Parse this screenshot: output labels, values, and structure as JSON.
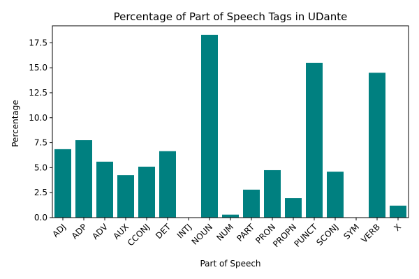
{
  "chart_data": {
    "type": "bar",
    "title": "Percentage of Part of Speech Tags in UDante",
    "xlabel": "Part of Speech",
    "ylabel": "Percentage",
    "categories": [
      "ADJ",
      "ADP",
      "ADV",
      "AUX",
      "CCONJ",
      "DET",
      "INTJ",
      "NOUN",
      "NUM",
      "PART",
      "PRON",
      "PROPN",
      "PUNCT",
      "SCONJ",
      "SYM",
      "VERB",
      "X"
    ],
    "values": [
      6.85,
      7.75,
      5.6,
      4.25,
      5.1,
      6.65,
      0.0,
      18.3,
      0.3,
      2.8,
      4.75,
      1.95,
      15.5,
      4.6,
      0.0,
      14.5,
      1.2
    ],
    "ylim": [
      0,
      19.2
    ],
    "yticks": [
      0.0,
      2.5,
      5.0,
      7.5,
      10.0,
      12.5,
      15.0,
      17.5
    ],
    "ytick_labels": [
      "0.0",
      "2.5",
      "5.0",
      "7.5",
      "10.0",
      "12.5",
      "15.0",
      "17.5"
    ],
    "bar_color": "#008080",
    "grid": false,
    "legend": "none"
  }
}
